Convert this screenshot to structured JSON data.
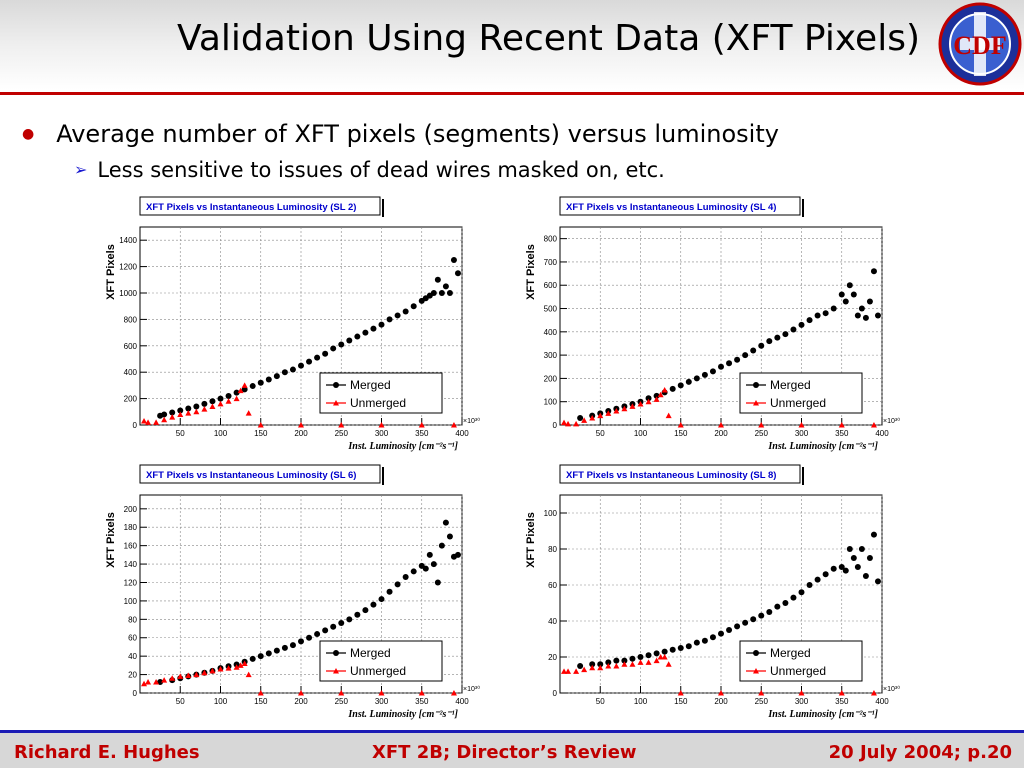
{
  "slide": {
    "title": "Validation Using Recent Data (XFT Pixels)",
    "logo_text": "CDF",
    "bullet": "Average number of XFT pixels (segments) versus luminosity",
    "sub_bullet": "Less sensitive to issues of dead wires masked on, etc."
  },
  "footer": {
    "left": "Richard E. Hughes",
    "center": "XFT 2B; Director’s Review",
    "right": "20 July 2004; p.20"
  },
  "colors": {
    "accent_red": "#c00000",
    "footer_blue": "#1b1bb5",
    "merged": "#000000",
    "unmerged": "#ff0000",
    "chart_title": "#0000cc"
  },
  "chart_data": [
    {
      "type": "scatter",
      "title": "XFT Pixels vs Instantaneous Luminosity (SL 2)",
      "xlabel": "Inst. Luminosity [cm⁻²s⁻¹]",
      "ylabel": "XFT Pixels",
      "exponent_label": "×10³⁰",
      "xlim": [
        0,
        400
      ],
      "ylim": [
        0,
        1500
      ],
      "yticks": [
        0,
        200,
        400,
        600,
        800,
        1000,
        1200,
        1400
      ],
      "xticks": [
        50,
        100,
        150,
        200,
        250,
        300,
        350,
        400
      ],
      "grid": true,
      "legend_placement": "bottom-right",
      "series": [
        {
          "name": "Merged",
          "x": [
            25,
            30,
            40,
            50,
            60,
            70,
            80,
            90,
            100,
            110,
            120,
            130,
            140,
            150,
            160,
            170,
            180,
            190,
            200,
            210,
            220,
            230,
            240,
            250,
            260,
            270,
            280,
            290,
            300,
            310,
            320,
            330,
            340,
            350,
            355,
            360,
            365,
            370,
            375,
            380,
            385,
            390,
            395
          ],
          "y": [
            70,
            80,
            95,
            110,
            125,
            140,
            160,
            180,
            200,
            220,
            245,
            270,
            295,
            320,
            345,
            370,
            400,
            420,
            450,
            480,
            510,
            540,
            580,
            610,
            640,
            670,
            700,
            730,
            760,
            800,
            830,
            860,
            900,
            940,
            960,
            980,
            1000,
            1100,
            1000,
            1050,
            1000,
            1250,
            1150
          ]
        },
        {
          "name": "Unmerged",
          "x": [
            5,
            10,
            20,
            30,
            40,
            50,
            60,
            70,
            80,
            90,
            100,
            110,
            120,
            125,
            130,
            135,
            150,
            200,
            250,
            300,
            350,
            390
          ],
          "y": [
            30,
            20,
            20,
            40,
            60,
            80,
            90,
            100,
            120,
            140,
            160,
            180,
            200,
            260,
            300,
            90,
            0,
            0,
            0,
            0,
            0,
            0
          ]
        }
      ]
    },
    {
      "type": "scatter",
      "title": "XFT Pixels vs Instantaneous Luminosity (SL 4)",
      "xlabel": "Inst. Luminosity [cm⁻²s⁻¹]",
      "ylabel": "XFT Pixels",
      "exponent_label": "×10³⁰",
      "xlim": [
        0,
        400
      ],
      "ylim": [
        0,
        850
      ],
      "yticks": [
        0,
        100,
        200,
        300,
        400,
        500,
        600,
        700,
        800
      ],
      "xticks": [
        50,
        100,
        150,
        200,
        250,
        300,
        350,
        400
      ],
      "grid": true,
      "legend_placement": "bottom-right",
      "series": [
        {
          "name": "Merged",
          "x": [
            25,
            40,
            50,
            60,
            70,
            80,
            90,
            100,
            110,
            120,
            130,
            140,
            150,
            160,
            170,
            180,
            190,
            200,
            210,
            220,
            230,
            240,
            250,
            260,
            270,
            280,
            290,
            300,
            310,
            320,
            330,
            340,
            350,
            355,
            360,
            365,
            370,
            375,
            380,
            385,
            390,
            395
          ],
          "y": [
            30,
            40,
            50,
            60,
            70,
            80,
            90,
            100,
            115,
            125,
            140,
            155,
            170,
            185,
            200,
            215,
            230,
            250,
            265,
            280,
            300,
            320,
            340,
            360,
            375,
            390,
            410,
            430,
            450,
            470,
            480,
            500,
            560,
            530,
            600,
            560,
            470,
            500,
            460,
            530,
            660,
            470
          ]
        },
        {
          "name": "Unmerged",
          "x": [
            5,
            10,
            20,
            30,
            40,
            50,
            60,
            70,
            80,
            90,
            100,
            110,
            120,
            125,
            130,
            135,
            150,
            200,
            250,
            300,
            350,
            390
          ],
          "y": [
            10,
            5,
            5,
            20,
            30,
            40,
            50,
            60,
            70,
            80,
            90,
            100,
            110,
            130,
            150,
            40,
            0,
            0,
            0,
            0,
            0,
            0
          ]
        }
      ]
    },
    {
      "type": "scatter",
      "title": "XFT Pixels vs Instantaneous Luminosity (SL 6)",
      "xlabel": "Inst. Luminosity [cm⁻²s⁻¹]",
      "ylabel": "XFT Pixels",
      "exponent_label": "×10³⁰",
      "xlim": [
        0,
        400
      ],
      "ylim": [
        0,
        215
      ],
      "yticks": [
        0,
        20,
        40,
        60,
        80,
        100,
        120,
        140,
        160,
        180,
        200
      ],
      "xticks": [
        50,
        100,
        150,
        200,
        250,
        300,
        350,
        400
      ],
      "grid": true,
      "legend_placement": "bottom-right",
      "series": [
        {
          "name": "Merged",
          "x": [
            25,
            40,
            50,
            60,
            70,
            80,
            90,
            100,
            110,
            120,
            130,
            140,
            150,
            160,
            170,
            180,
            190,
            200,
            210,
            220,
            230,
            240,
            250,
            260,
            270,
            280,
            290,
            300,
            310,
            320,
            330,
            340,
            350,
            355,
            360,
            365,
            370,
            375,
            380,
            385,
            390,
            395
          ],
          "y": [
            12,
            14,
            16,
            18,
            20,
            22,
            24,
            27,
            29,
            31,
            34,
            37,
            40,
            43,
            46,
            49,
            52,
            56,
            60,
            64,
            68,
            72,
            76,
            80,
            85,
            90,
            96,
            102,
            110,
            118,
            126,
            132,
            138,
            135,
            150,
            140,
            120,
            160,
            185,
            170,
            148,
            150
          ]
        },
        {
          "name": "Unmerged",
          "x": [
            5,
            10,
            20,
            30,
            40,
            50,
            60,
            70,
            80,
            90,
            100,
            110,
            120,
            125,
            130,
            135,
            150,
            200,
            250,
            300,
            350,
            390
          ],
          "y": [
            10,
            12,
            12,
            14,
            16,
            18,
            19,
            20,
            22,
            24,
            26,
            27,
            28,
            30,
            32,
            20,
            0,
            0,
            0,
            0,
            0,
            0
          ]
        }
      ]
    },
    {
      "type": "scatter",
      "title": "XFT Pixels vs Instantaneous Luminosity (SL 8)",
      "xlabel": "Inst. Luminosity [cm⁻²s⁻¹]",
      "ylabel": "XFT Pixels",
      "exponent_label": "×10³⁰",
      "xlim": [
        0,
        400
      ],
      "ylim": [
        0,
        110
      ],
      "yticks": [
        0,
        20,
        40,
        60,
        80,
        100
      ],
      "xticks": [
        50,
        100,
        150,
        200,
        250,
        300,
        350,
        400
      ],
      "grid": true,
      "legend_placement": "bottom-right",
      "series": [
        {
          "name": "Merged",
          "x": [
            25,
            40,
            50,
            60,
            70,
            80,
            90,
            100,
            110,
            120,
            130,
            140,
            150,
            160,
            170,
            180,
            190,
            200,
            210,
            220,
            230,
            240,
            250,
            260,
            270,
            280,
            290,
            300,
            310,
            320,
            330,
            340,
            350,
            355,
            360,
            365,
            370,
            375,
            380,
            385,
            390,
            395
          ],
          "y": [
            15,
            16,
            16,
            17,
            18,
            18,
            19,
            20,
            21,
            22,
            23,
            24,
            25,
            26,
            28,
            29,
            31,
            33,
            35,
            37,
            39,
            41,
            43,
            45,
            48,
            50,
            53,
            56,
            60,
            63,
            66,
            69,
            70,
            68,
            80,
            75,
            70,
            80,
            65,
            75,
            88,
            62
          ]
        },
        {
          "name": "Unmerged",
          "x": [
            5,
            10,
            20,
            30,
            40,
            50,
            60,
            70,
            80,
            90,
            100,
            110,
            120,
            125,
            130,
            135,
            150,
            200,
            250,
            300,
            350,
            390
          ],
          "y": [
            12,
            12,
            12,
            13,
            14,
            14,
            15,
            15,
            16,
            16,
            17,
            17,
            18,
            20,
            20,
            16,
            0,
            0,
            0,
            0,
            0,
            0
          ]
        }
      ]
    }
  ]
}
